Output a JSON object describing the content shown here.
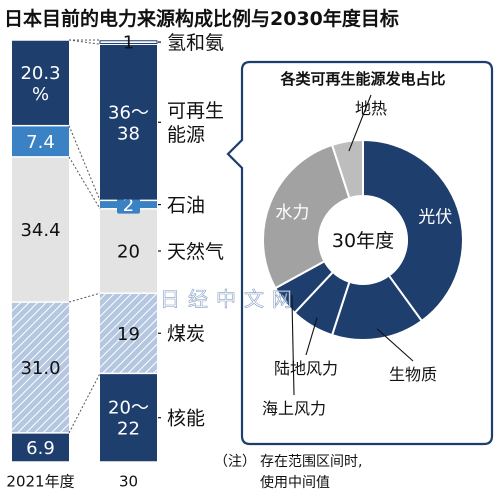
{
  "title": "日本目前的电力来源构成比例与2030年度目标",
  "colors": {
    "dark_blue": "#1e3f6e",
    "mid_blue": "#3b82c4",
    "light_gray": "#e3e3e3",
    "hatch_blue": "#b4c6e0",
    "pie_gray": "#a2a2a2",
    "pie_light_gray": "#bdbdbd"
  },
  "chart_data": [
    {
      "type": "bar",
      "stacked": true,
      "categories": [
        "2021年度",
        "30"
      ],
      "series": [
        {
          "name": "核能",
          "values": [
            6.9,
            21
          ],
          "labels": [
            "6.9",
            "20～\n22"
          ],
          "style": "dark_blue"
        },
        {
          "name": "煤炭",
          "values": [
            31.0,
            19
          ],
          "labels": [
            "31.0",
            "19"
          ],
          "style": "hatch"
        },
        {
          "name": "天然气",
          "values": [
            34.4,
            20
          ],
          "labels": [
            "34.4",
            "20"
          ],
          "style": "light_gray"
        },
        {
          "name": "石油",
          "values": [
            7.4,
            2
          ],
          "labels": [
            "7.4",
            "2"
          ],
          "style": "mid_blue"
        },
        {
          "name": "可再生\n能源",
          "values": [
            20.3,
            37
          ],
          "labels": [
            "20.3\n%",
            "36～\n38"
          ],
          "style": "dark_blue"
        },
        {
          "name": "氢和氨",
          "values": [
            0,
            1
          ],
          "labels": [
            "",
            "1"
          ],
          "style": "white"
        }
      ],
      "ylim": [
        0,
        100
      ]
    },
    {
      "type": "pie",
      "title": "各类可再生能源发电占比",
      "center_label": "30年度",
      "slices": [
        {
          "label": "光伏",
          "value": 40,
          "style": "dark_blue"
        },
        {
          "label": "生物质",
          "value": 15,
          "style": "dark_blue"
        },
        {
          "label": "陆地风力",
          "value": 7,
          "style": "dark_blue"
        },
        {
          "label": "海上风力",
          "value": 5,
          "style": "dark_blue"
        },
        {
          "label": "水力",
          "value": 28,
          "style": "pie_gray"
        },
        {
          "label": "地热",
          "value": 5,
          "style": "pie_light_gray"
        }
      ]
    }
  ],
  "note": {
    "mark": "（注）",
    "lines": [
      "存在范围区间时,",
      "使用中间值"
    ]
  },
  "watermark": "日经中文网"
}
